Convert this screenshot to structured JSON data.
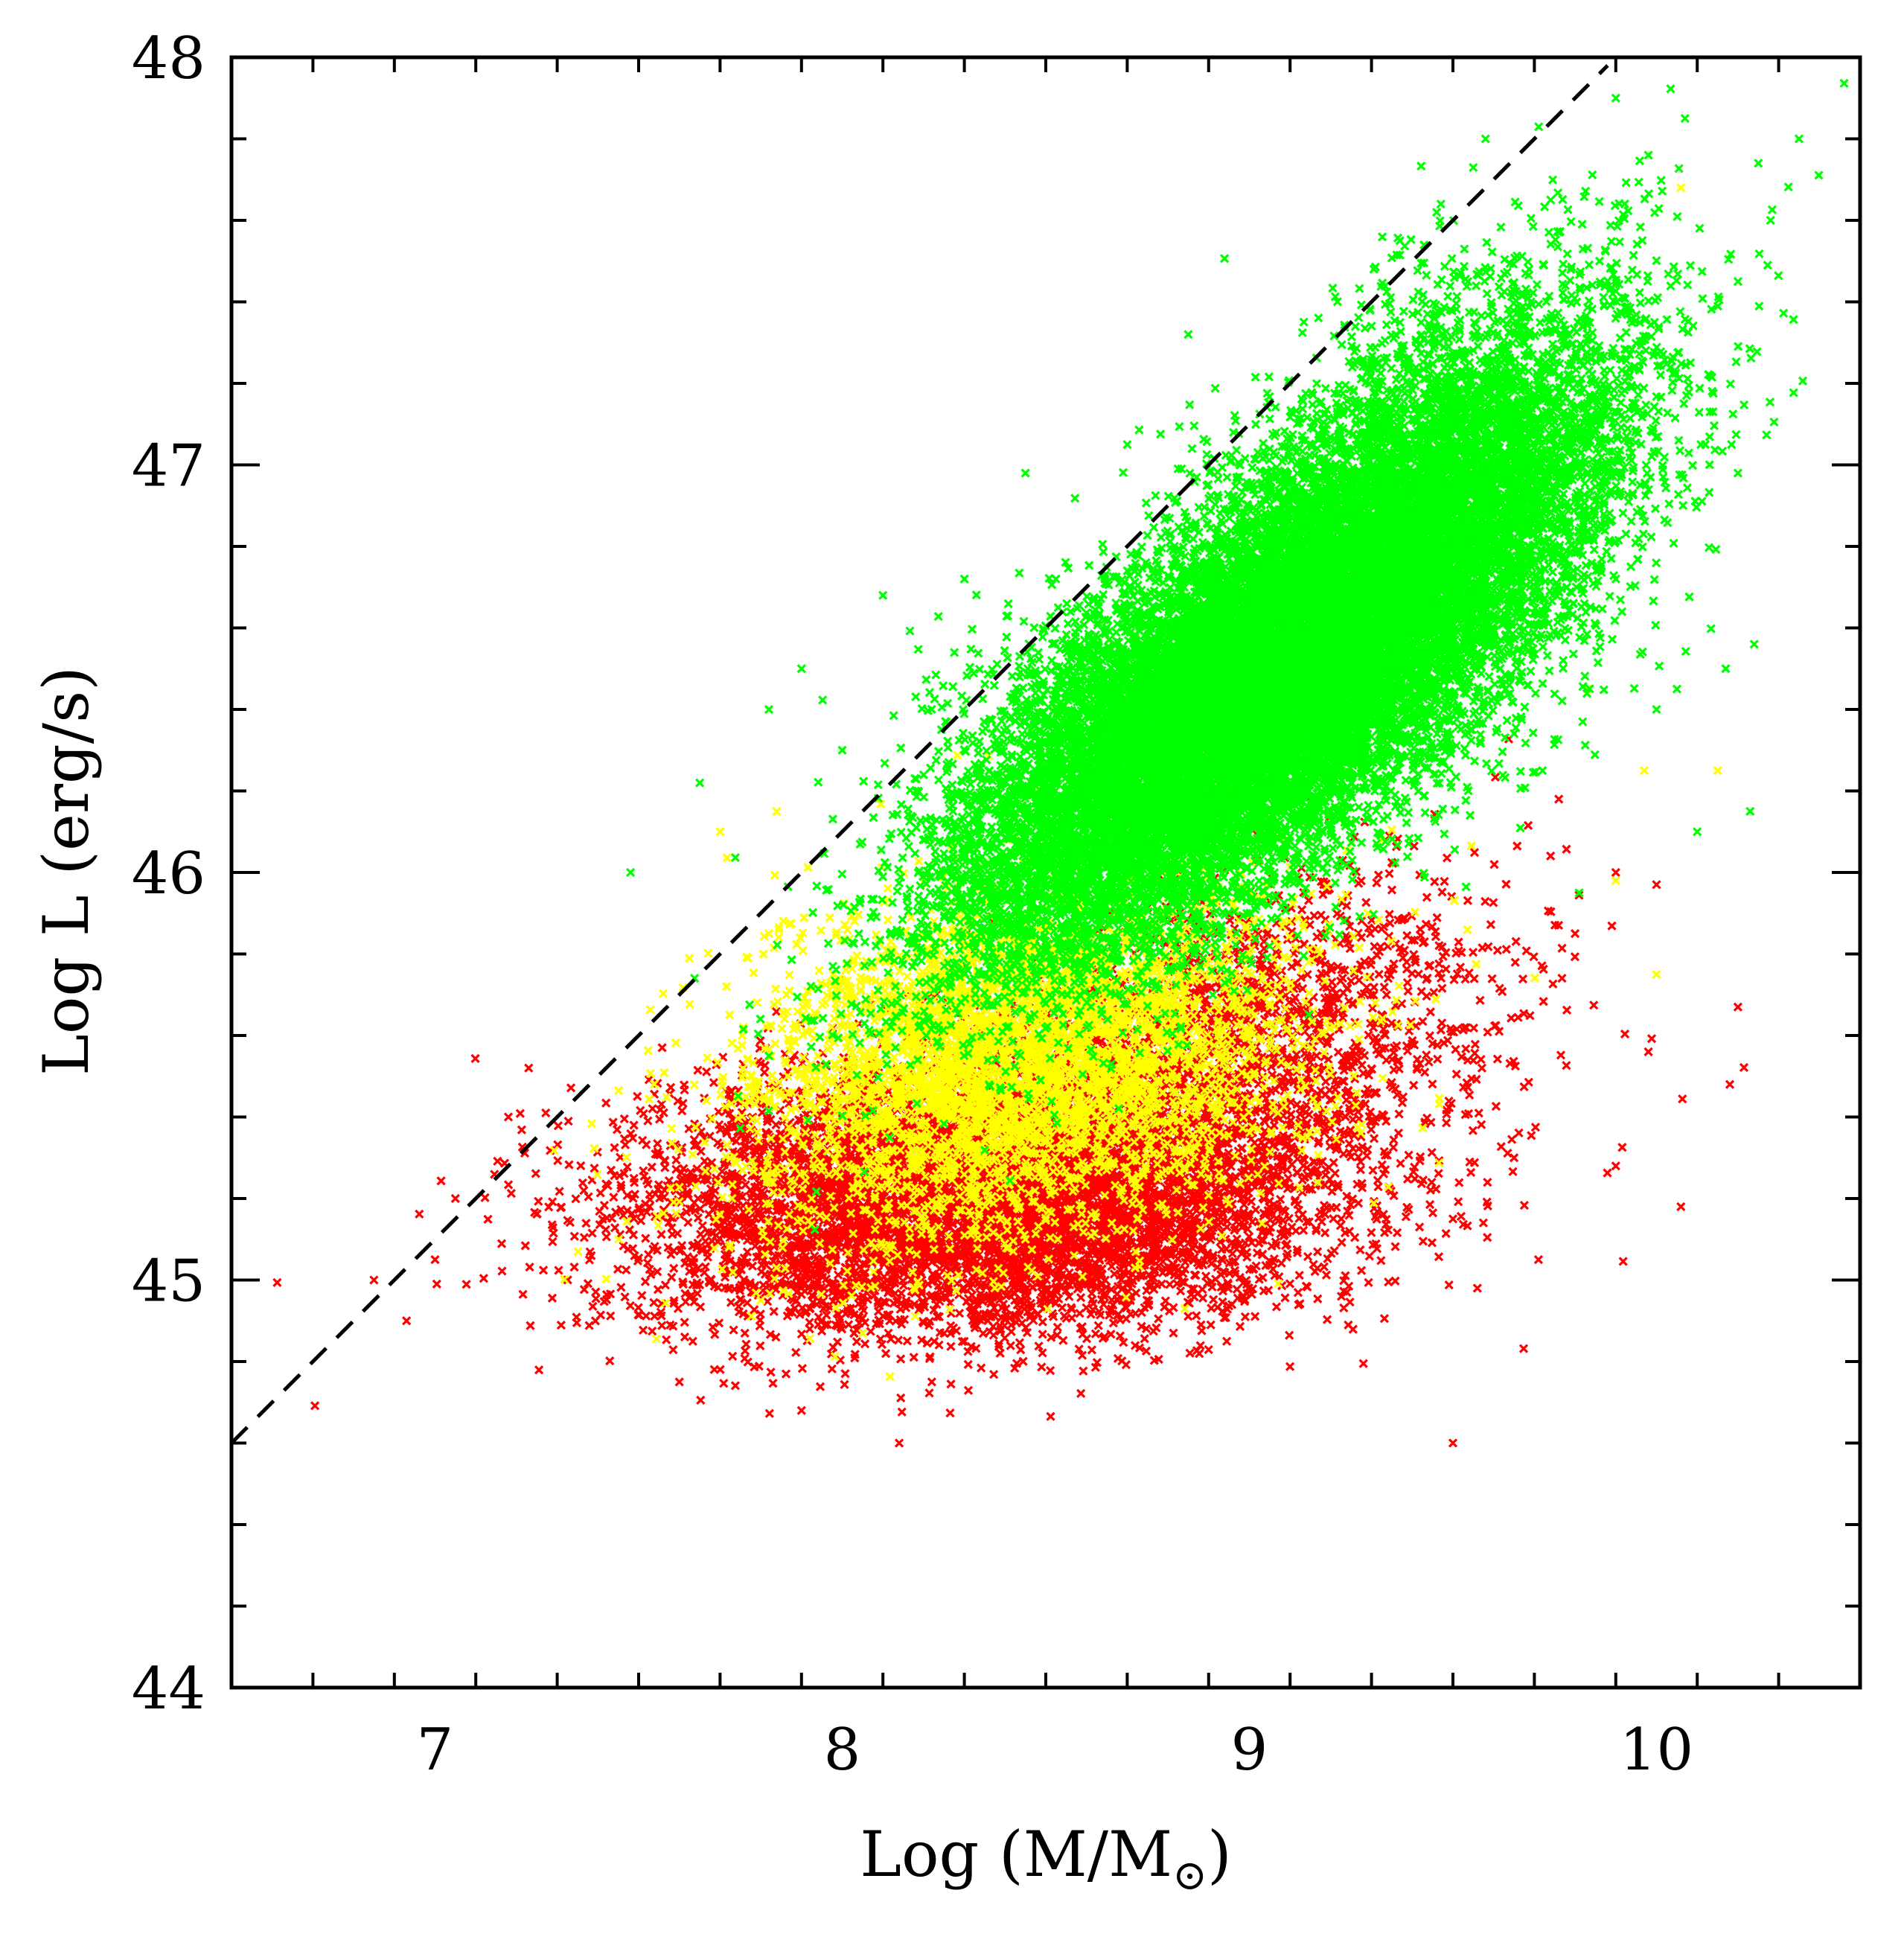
{
  "chart_data": {
    "type": "scatter",
    "title": "",
    "xlabel": "Log (M/M",
    "xlabel_subscript": "⊙",
    "xlabel_close": ")",
    "ylabel": "Log L (erg/s)",
    "xlim": [
      6.5,
      10.5
    ],
    "ylim": [
      44,
      48
    ],
    "x_ticks": [
      7,
      8,
      9,
      10
    ],
    "x_tick_labels": [
      "7",
      "8",
      "9",
      "10"
    ],
    "y_ticks": [
      44,
      45,
      46,
      47,
      48
    ],
    "y_tick_labels": [
      "44",
      "45",
      "46",
      "47",
      "48"
    ],
    "x_minor_step": 0.2,
    "y_minor_step": 0.2,
    "grid": false,
    "marker": "x",
    "reference_line": {
      "style": "dashed",
      "color": "#000000",
      "x": [
        6.5,
        9.88
      ],
      "y": [
        44.6,
        47.98
      ]
    },
    "series": [
      {
        "name": "red",
        "color": "#ff0000",
        "clusters": [
          {
            "cx": 8.35,
            "cy": 45.2,
            "sx": 0.42,
            "sy": 0.16,
            "rho": 0.1,
            "n": 7000
          },
          {
            "cx": 8.9,
            "cy": 45.55,
            "sx": 0.35,
            "sy": 0.22,
            "rho": 0.35,
            "n": 2000
          }
        ],
        "points": [
          [
            8.14,
            44.6
          ],
          [
            9.5,
            44.6
          ],
          [
            7.9,
            44.68
          ],
          [
            7.6,
            44.75
          ],
          [
            8.22,
            44.75
          ],
          [
            6.93,
            44.9
          ],
          [
            6.85,
            45.0
          ],
          [
            7.0,
            45.05
          ],
          [
            7.05,
            45.2
          ],
          [
            7.18,
            45.4
          ],
          [
            7.23,
            45.52
          ],
          [
            9.98,
            45.56
          ],
          [
            10.18,
            45.48
          ],
          [
            10.2,
            45.67
          ],
          [
            10.06,
            45.18
          ],
          [
            9.65,
            45.3
          ],
          [
            9.71,
            45.05
          ],
          [
            9.5,
            45.15
          ],
          [
            9.9,
            45.28
          ],
          [
            9.56,
            44.98
          ],
          [
            9.45,
            45.58
          ],
          [
            9.8,
            45.85
          ],
          [
            9.9,
            46.0
          ],
          [
            9.76,
            46.18
          ],
          [
            10.0,
            45.97
          ]
        ]
      },
      {
        "name": "yellow",
        "color": "#ffff00",
        "clusters": [
          {
            "cx": 8.5,
            "cy": 45.55,
            "sx": 0.32,
            "sy": 0.2,
            "rho": 0.2,
            "n": 3500
          },
          {
            "cx": 8.2,
            "cy": 45.45,
            "sx": 0.3,
            "sy": 0.22,
            "rho": 0.2,
            "n": 1000
          }
        ],
        "points": [
          [
            9.97,
            46.25
          ],
          [
            10.15,
            46.25
          ],
          [
            9.9,
            45.98
          ],
          [
            10.0,
            45.75
          ],
          [
            9.83,
            46.45
          ],
          [
            10.06,
            47.68
          ],
          [
            7.8,
            44.95
          ],
          [
            8.45,
            45.1
          ],
          [
            7.82,
            45.85
          ],
          [
            7.7,
            46.1
          ]
        ]
      },
      {
        "name": "green",
        "color": "#00ff00",
        "clusters": [
          {
            "cx": 9.02,
            "cy": 46.45,
            "sx": 0.36,
            "sy": 0.32,
            "rho": 0.72,
            "n": 20000
          },
          {
            "cx": 9.45,
            "cy": 46.9,
            "sx": 0.26,
            "sy": 0.3,
            "rho": 0.5,
            "n": 4000
          }
        ],
        "points": [
          [
            7.48,
            46.0
          ],
          [
            7.65,
            46.22
          ],
          [
            7.82,
            46.4
          ],
          [
            7.9,
            46.5
          ],
          [
            7.82,
            45.55
          ],
          [
            8.0,
            46.3
          ],
          [
            8.1,
            46.68
          ],
          [
            8.3,
            46.72
          ],
          [
            8.45,
            46.98
          ],
          [
            8.7,
            47.05
          ],
          [
            8.85,
            47.32
          ],
          [
            9.37,
            47.55
          ],
          [
            9.58,
            47.8
          ],
          [
            9.9,
            47.9
          ],
          [
            10.07,
            47.85
          ],
          [
            9.98,
            47.76
          ],
          [
            10.35,
            47.8
          ],
          [
            10.25,
            47.74
          ],
          [
            10.28,
            47.6
          ],
          [
            10.2,
            47.45
          ],
          [
            10.17,
            46.5
          ],
          [
            10.24,
            46.56
          ],
          [
            10.1,
            46.1
          ],
          [
            10.23,
            46.15
          ],
          [
            10.05,
            46.45
          ],
          [
            10.0,
            46.4
          ],
          [
            8.58,
            45.65
          ],
          [
            8.91,
            45.7
          ],
          [
            9.81,
            45.95
          ],
          [
            9.72,
            46.25
          ],
          [
            9.46,
            47.62
          ],
          [
            9.74,
            47.65
          ],
          [
            9.86,
            47.5
          ],
          [
            10.12,
            47.05
          ],
          [
            10.2,
            46.98
          ]
        ]
      }
    ]
  }
}
